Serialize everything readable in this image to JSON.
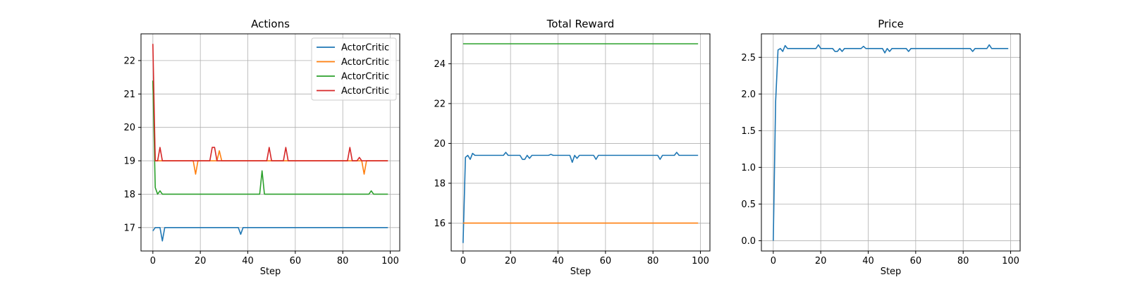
{
  "chart_data": [
    {
      "type": "line",
      "title": "Actions",
      "xlabel": "Step",
      "ylabel": "",
      "xlim": [
        -5,
        104
      ],
      "ylim": [
        16.3,
        22.8
      ],
      "xticks": [
        0,
        20,
        40,
        60,
        80,
        100
      ],
      "yticks": [
        17,
        18,
        19,
        20,
        21,
        22
      ],
      "grid": true,
      "legend": "top-right",
      "series": [
        {
          "name": "ActorCritic",
          "color": "#1f77b4",
          "points": [
            [
              0,
              16.9
            ],
            [
              1,
              17
            ],
            [
              2,
              17
            ],
            [
              3,
              17
            ],
            [
              4,
              16.6
            ],
            [
              5,
              17
            ],
            [
              6,
              17
            ],
            [
              36,
              17
            ],
            [
              37,
              16.8
            ],
            [
              38,
              17
            ],
            [
              99,
              17
            ]
          ]
        },
        {
          "name": "ActorCritic",
          "color": "#ff7f0e",
          "points": [
            [
              0,
              21.4
            ],
            [
              1,
              19
            ],
            [
              17,
              19
            ],
            [
              18,
              18.6
            ],
            [
              19,
              19
            ],
            [
              27,
              19
            ],
            [
              28,
              19.3
            ],
            [
              29,
              19
            ],
            [
              88,
              19
            ],
            [
              89,
              18.6
            ],
            [
              90,
              19
            ],
            [
              99,
              19
            ]
          ]
        },
        {
          "name": "ActorCritic",
          "color": "#2ca02c",
          "points": [
            [
              0,
              21.4
            ],
            [
              1,
              18.2
            ],
            [
              2,
              18
            ],
            [
              3,
              18.1
            ],
            [
              4,
              18
            ],
            [
              45,
              18
            ],
            [
              46,
              18.7
            ],
            [
              47,
              18
            ],
            [
              91,
              18
            ],
            [
              92,
              18.1
            ],
            [
              93,
              18
            ],
            [
              99,
              18
            ]
          ]
        },
        {
          "name": "ActorCritic",
          "color": "#d62728",
          "points": [
            [
              0,
              22.5
            ],
            [
              1,
              19
            ],
            [
              2,
              19
            ],
            [
              3,
              19.4
            ],
            [
              4,
              19
            ],
            [
              24,
              19
            ],
            [
              25,
              19.4
            ],
            [
              26,
              19.4
            ],
            [
              27,
              19
            ],
            [
              48,
              19
            ],
            [
              49,
              19.4
            ],
            [
              50,
              19
            ],
            [
              55,
              19
            ],
            [
              56,
              19.4
            ],
            [
              57,
              19
            ],
            [
              82,
              19
            ],
            [
              83,
              19.4
            ],
            [
              84,
              19
            ],
            [
              86,
              19
            ],
            [
              87,
              19.1
            ],
            [
              88,
              19
            ],
            [
              99,
              19
            ]
          ]
        }
      ]
    },
    {
      "type": "line",
      "title": "Total Reward",
      "xlabel": "Step",
      "ylabel": "",
      "xlim": [
        -5,
        104
      ],
      "ylim": [
        14.6,
        25.5
      ],
      "xticks": [
        0,
        20,
        40,
        60,
        80,
        100
      ],
      "yticks": [
        16,
        18,
        20,
        22,
        24
      ],
      "grid": true,
      "series": [
        {
          "name": "",
          "color": "#1f77b4",
          "points": [
            [
              0,
              15
            ],
            [
              1,
              19.3
            ],
            [
              2,
              19.4
            ],
            [
              3,
              19.2
            ],
            [
              4,
              19.5
            ],
            [
              5,
              19.4
            ],
            [
              17,
              19.4
            ],
            [
              18,
              19.55
            ],
            [
              19,
              19.4
            ],
            [
              24,
              19.4
            ],
            [
              25,
              19.2
            ],
            [
              26,
              19.2
            ],
            [
              27,
              19.4
            ],
            [
              28,
              19.25
            ],
            [
              29,
              19.4
            ],
            [
              36,
              19.4
            ],
            [
              37,
              19.45
            ],
            [
              38,
              19.4
            ],
            [
              45,
              19.4
            ],
            [
              46,
              19.05
            ],
            [
              47,
              19.4
            ],
            [
              48,
              19.25
            ],
            [
              49,
              19.4
            ],
            [
              55,
              19.4
            ],
            [
              56,
              19.2
            ],
            [
              57,
              19.4
            ],
            [
              82,
              19.4
            ],
            [
              83,
              19.2
            ],
            [
              84,
              19.4
            ],
            [
              89,
              19.4
            ],
            [
              90,
              19.55
            ],
            [
              91,
              19.4
            ],
            [
              99,
              19.4
            ]
          ]
        },
        {
          "name": "",
          "color": "#ff7f0e",
          "points": [
            [
              0,
              16
            ],
            [
              99,
              16
            ]
          ]
        },
        {
          "name": "",
          "color": "#2ca02c",
          "points": [
            [
              0,
              25
            ],
            [
              99,
              25
            ]
          ]
        }
      ]
    },
    {
      "type": "line",
      "title": "Price",
      "xlabel": "Step",
      "ylabel": "",
      "xlim": [
        -5,
        104
      ],
      "ylim": [
        -0.14,
        2.82
      ],
      "xticks": [
        0,
        20,
        40,
        60,
        80,
        100
      ],
      "yticks": [
        0.0,
        0.5,
        1.0,
        1.5,
        2.0,
        2.5
      ],
      "ytick_labels": [
        "0.0",
        "0.5",
        "1.0",
        "1.5",
        "2.0",
        "2.5"
      ],
      "grid": true,
      "series": [
        {
          "name": "",
          "color": "#1f77b4",
          "points": [
            [
              0,
              0
            ],
            [
              1,
              1.9
            ],
            [
              2,
              2.6
            ],
            [
              3,
              2.62
            ],
            [
              4,
              2.58
            ],
            [
              5,
              2.66
            ],
            [
              6,
              2.62
            ],
            [
              18,
              2.62
            ],
            [
              19,
              2.67
            ],
            [
              20,
              2.62
            ],
            [
              25,
              2.62
            ],
            [
              26,
              2.58
            ],
            [
              27,
              2.58
            ],
            [
              28,
              2.62
            ],
            [
              29,
              2.58
            ],
            [
              30,
              2.62
            ],
            [
              37,
              2.62
            ],
            [
              38,
              2.65
            ],
            [
              39,
              2.62
            ],
            [
              46,
              2.62
            ],
            [
              47,
              2.56
            ],
            [
              48,
              2.62
            ],
            [
              49,
              2.58
            ],
            [
              50,
              2.62
            ],
            [
              56,
              2.62
            ],
            [
              57,
              2.58
            ],
            [
              58,
              2.62
            ],
            [
              83,
              2.62
            ],
            [
              84,
              2.58
            ],
            [
              85,
              2.62
            ],
            [
              90,
              2.62
            ],
            [
              91,
              2.67
            ],
            [
              92,
              2.62
            ],
            [
              99,
              2.62
            ]
          ]
        }
      ]
    }
  ]
}
